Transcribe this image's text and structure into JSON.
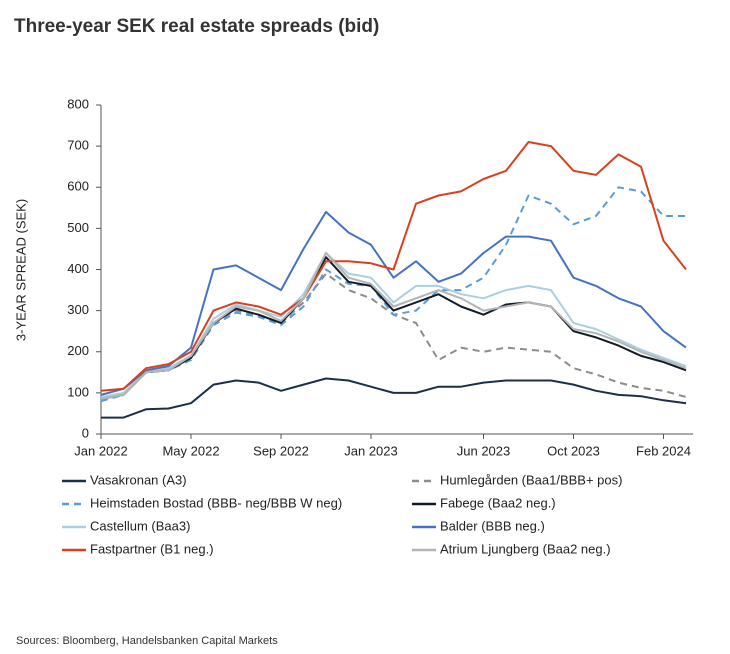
{
  "chart_data": {
    "type": "line",
    "title": "Three-year SEK real estate spreads (bid)",
    "y_label": "3-YEAR SPREAD (SEK)",
    "source": "Sources: Bloomberg, Handelsbanken Capital Markets",
    "x": [
      "Jan 2022",
      "Feb 2022",
      "Mar 2022",
      "Apr 2022",
      "May 2022",
      "Jun 2022",
      "Jul 2022",
      "Aug 2022",
      "Sep 2022",
      "Oct 2022",
      "Nov 2022",
      "Dec 2022",
      "Jan 2023",
      "Feb 2023",
      "Mar 2023",
      "Apr 2023",
      "May 2023",
      "Jun 2023",
      "Jul 2023",
      "Aug 2023",
      "Sep 2023",
      "Oct 2023",
      "Nov 2023",
      "Dec 2023",
      "Jan 2024",
      "Feb 2024",
      "Mar 2024"
    ],
    "xlim": [
      "Jan 2022",
      "Mar 2024"
    ],
    "xticks": [
      "Jan 2022",
      "May 2022",
      "Sep 2022",
      "Jan 2023",
      "Jun 2023",
      "Oct 2023",
      "Feb 2024"
    ],
    "ylim": [
      0,
      800
    ],
    "yticks": [
      0,
      100,
      200,
      300,
      400,
      500,
      600,
      700,
      800
    ],
    "series": [
      {
        "name": "Vasakronan (A3)",
        "color": "#1b2f4a",
        "style": "solid",
        "values": [
          40,
          40,
          60,
          62,
          75,
          120,
          130,
          125,
          105,
          120,
          135,
          130,
          115,
          100,
          100,
          115,
          115,
          125,
          130,
          130,
          130,
          120,
          105,
          95,
          92,
          82,
          75
        ]
      },
      {
        "name": "Humlegården (Baa1/BBB+ pos)",
        "color": "#8c8c8c",
        "style": "dashed",
        "values": [
          85,
          95,
          150,
          155,
          190,
          270,
          300,
          290,
          270,
          320,
          390,
          350,
          330,
          290,
          270,
          180,
          210,
          200,
          210,
          205,
          200,
          160,
          145,
          125,
          112,
          105,
          90
        ]
      },
      {
        "name": "Heimstaden Bostad (BBB- neg/BBB W neg)",
        "color": "#5b9bd5",
        "style": "dashed",
        "values": [
          80,
          95,
          150,
          155,
          180,
          265,
          295,
          285,
          265,
          310,
          400,
          365,
          360,
          290,
          300,
          350,
          350,
          380,
          460,
          580,
          560,
          510,
          530,
          600,
          590,
          530,
          530
        ]
      },
      {
        "name": "Fabege (Baa2 neg.)",
        "color": "#111c2a",
        "style": "solid",
        "values": [
          85,
          95,
          150,
          155,
          185,
          270,
          305,
          290,
          270,
          330,
          430,
          370,
          360,
          300,
          320,
          340,
          310,
          290,
          315,
          320,
          310,
          250,
          235,
          215,
          190,
          175,
          155
        ]
      },
      {
        "name": "Castellum (Baa3)",
        "color": "#a9cfe0",
        "style": "solid",
        "values": [
          90,
          100,
          155,
          160,
          190,
          280,
          315,
          300,
          285,
          340,
          440,
          390,
          380,
          320,
          360,
          360,
          340,
          330,
          350,
          360,
          350,
          270,
          255,
          230,
          205,
          185,
          165
        ]
      },
      {
        "name": "Balder (BBB neg.)",
        "color": "#4472c4",
        "style": "solid",
        "values": [
          95,
          110,
          155,
          165,
          210,
          400,
          410,
          380,
          350,
          450,
          540,
          490,
          460,
          380,
          420,
          370,
          390,
          440,
          480,
          480,
          470,
          380,
          360,
          330,
          310,
          250,
          210
        ]
      },
      {
        "name": "Fastpartner (B1 neg.)",
        "color": "#d9411e",
        "style": "solid",
        "values": [
          105,
          110,
          160,
          170,
          200,
          300,
          320,
          310,
          290,
          330,
          420,
          420,
          415,
          400,
          560,
          580,
          590,
          620,
          640,
          710,
          700,
          640,
          630,
          680,
          650,
          470,
          400
        ]
      },
      {
        "name": "Atrium Ljungberg (Baa2 neg.)",
        "color": "#b4b4b4",
        "style": "solid",
        "values": [
          85,
          95,
          150,
          155,
          190,
          270,
          310,
          300,
          275,
          330,
          440,
          380,
          365,
          310,
          330,
          350,
          330,
          300,
          310,
          320,
          310,
          255,
          245,
          225,
          200,
          180,
          160
        ]
      }
    ]
  }
}
